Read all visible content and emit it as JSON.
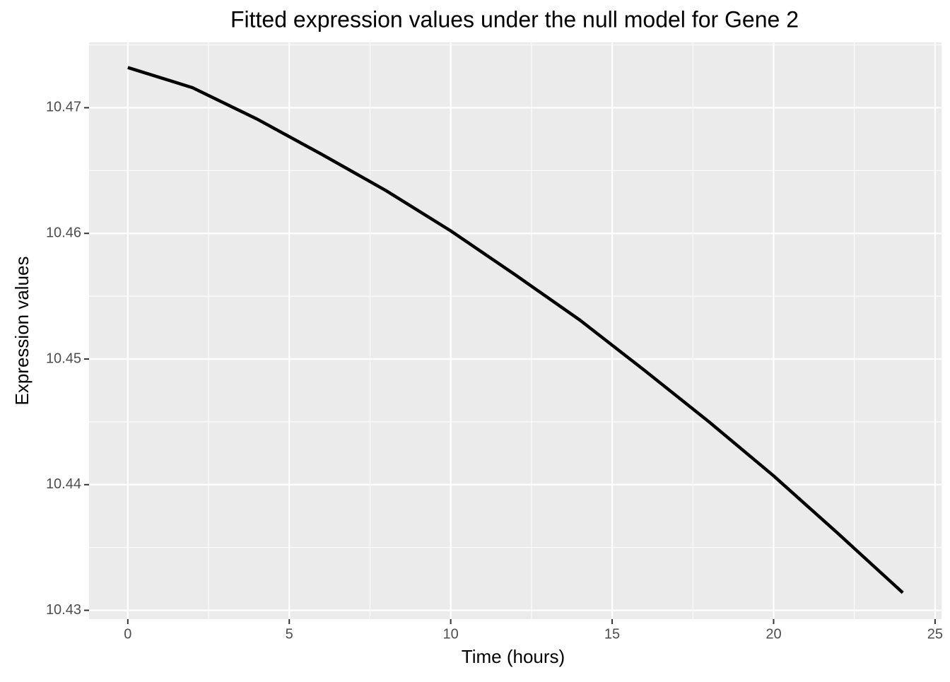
{
  "chart_data": {
    "type": "line",
    "title": "Fitted expression values under the null model for Gene 2",
    "x_label": "Time (hours)",
    "y_label": "Expression values",
    "x": [
      0,
      2,
      4,
      6,
      8,
      10,
      12,
      14,
      16,
      18,
      20,
      22,
      24
    ],
    "series": [
      {
        "name": "Gene 2",
        "color": "#000000",
        "values": [
          10.4732,
          10.4716,
          10.4691,
          10.4663,
          10.4634,
          10.4602,
          10.4567,
          10.4531,
          10.4491,
          10.445,
          10.4407,
          10.4361,
          10.4314
        ]
      }
    ],
    "xlim": [
      -1.2,
      25.2
    ],
    "ylim": [
      10.4293,
      10.4752
    ],
    "xticks": [
      0,
      5,
      10,
      15,
      20,
      25
    ],
    "yticks": [
      10.43,
      10.44,
      10.45,
      10.46,
      10.47
    ],
    "x_minor_ticks": [
      2.5,
      7.5,
      12.5,
      17.5,
      22.5
    ],
    "y_minor_ticks": [
      10.435,
      10.445,
      10.455,
      10.465,
      10.475
    ],
    "grid": true
  }
}
